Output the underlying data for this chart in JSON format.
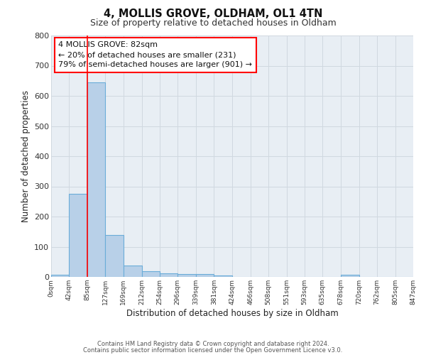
{
  "title": "4, MOLLIS GROVE, OLDHAM, OL1 4TN",
  "subtitle": "Size of property relative to detached houses in Oldham",
  "xlabel": "Distribution of detached houses by size in Oldham",
  "ylabel": "Number of detached properties",
  "bin_edges": [
    0,
    42,
    85,
    127,
    169,
    212,
    254,
    296,
    339,
    381,
    424,
    466,
    508,
    551,
    593,
    635,
    678,
    720,
    762,
    805,
    847
  ],
  "bar_heights": [
    8,
    275,
    645,
    140,
    38,
    20,
    12,
    10,
    10,
    4,
    0,
    0,
    0,
    0,
    0,
    0,
    8,
    0,
    0,
    0
  ],
  "bar_color": "#b8d0e8",
  "bar_edge_color": "#6aacd8",
  "bar_edge_width": 0.8,
  "red_line_x": 85,
  "ylim": [
    0,
    800
  ],
  "yticks": [
    0,
    100,
    200,
    300,
    400,
    500,
    600,
    700,
    800
  ],
  "x_tick_labels": [
    "0sqm",
    "42sqm",
    "85sqm",
    "127sqm",
    "169sqm",
    "212sqm",
    "254sqm",
    "296sqm",
    "339sqm",
    "381sqm",
    "424sqm",
    "466sqm",
    "508sqm",
    "551sqm",
    "593sqm",
    "635sqm",
    "678sqm",
    "720sqm",
    "762sqm",
    "805sqm",
    "847sqm"
  ],
  "annotation_title": "4 MOLLIS GROVE: 82sqm",
  "annotation_line1": "← 20% of detached houses are smaller (231)",
  "annotation_line2": "79% of semi-detached houses are larger (901) →",
  "grid_color": "#d0d8e0",
  "background_color": "#e8eef4",
  "footer1": "Contains HM Land Registry data © Crown copyright and database right 2024.",
  "footer2": "Contains public sector information licensed under the Open Government Licence v3.0."
}
